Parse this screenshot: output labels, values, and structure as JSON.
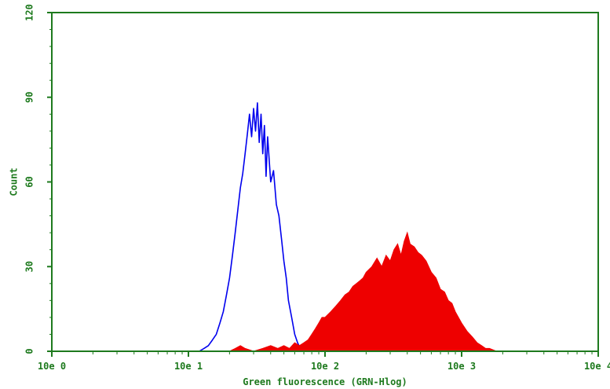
{
  "chart_data": {
    "type": "area",
    "xlabel": "Green fluorescence (GRN-Hlog)",
    "ylabel": "Count",
    "x_scale": "log",
    "xlim": [
      1,
      10000
    ],
    "ylim": [
      0,
      120
    ],
    "x_tick_labels": [
      "10e 0",
      "10e 1",
      "10e 2",
      "10e 3",
      "10e 4"
    ],
    "x_ticks": [
      1,
      10,
      100,
      1000,
      10000
    ],
    "y_ticks": [
      0,
      30,
      60,
      90,
      120
    ],
    "grid": false,
    "legend": "none",
    "colors": {
      "axis": "#1e7a1e",
      "control": "#0000ee",
      "sample": "#ee0000"
    },
    "series": [
      {
        "style": "outline",
        "color": "#0000ee",
        "x": [
          12,
          13,
          14,
          15,
          16,
          17,
          18,
          19,
          20,
          21,
          22,
          23,
          24,
          25,
          26,
          27,
          28,
          29,
          30,
          31,
          32,
          33,
          34,
          35,
          36,
          37,
          38,
          40,
          42,
          44,
          46,
          48,
          50,
          52,
          54,
          57,
          60,
          63,
          66,
          70
        ],
        "y": [
          0,
          1,
          2,
          4,
          6,
          10,
          14,
          20,
          26,
          34,
          42,
          50,
          58,
          63,
          70,
          77,
          84,
          76,
          86,
          78,
          88,
          74,
          84,
          70,
          80,
          62,
          76,
          60,
          64,
          52,
          48,
          40,
          32,
          26,
          18,
          12,
          6,
          3,
          1,
          0
        ]
      },
      {
        "style": "filled",
        "color": "#ee0000",
        "x": [
          20,
          22,
          24,
          26,
          30,
          35,
          40,
          45,
          50,
          55,
          60,
          65,
          70,
          75,
          80,
          85,
          90,
          95,
          100,
          110,
          120,
          130,
          140,
          150,
          160,
          170,
          180,
          190,
          200,
          220,
          240,
          260,
          280,
          300,
          320,
          340,
          360,
          380,
          400,
          420,
          450,
          480,
          510,
          550,
          600,
          650,
          700,
          750,
          800,
          850,
          900,
          1000,
          1100,
          1200,
          1300,
          1400,
          1500,
          1600,
          1800
        ],
        "y": [
          0,
          1,
          2,
          1,
          0,
          1,
          2,
          1,
          2,
          1,
          3,
          2,
          3,
          4,
          6,
          8,
          10,
          12,
          12,
          14,
          16,
          18,
          20,
          21,
          23,
          24,
          25,
          26,
          28,
          30,
          33,
          30,
          34,
          32,
          36,
          38,
          34,
          39,
          42,
          38,
          37,
          35,
          34,
          32,
          28,
          26,
          22,
          21,
          18,
          17,
          14,
          10,
          7,
          5,
          3,
          2,
          1,
          1,
          0
        ]
      }
    ]
  }
}
